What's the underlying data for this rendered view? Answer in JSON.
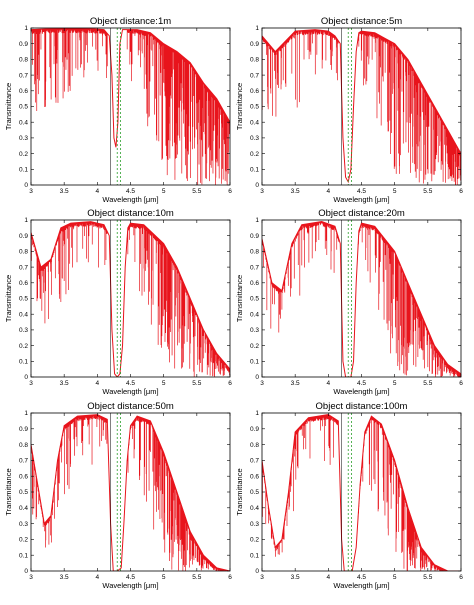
{
  "chart_data": [
    {
      "type": "line",
      "title": "Object distance:1m",
      "xlabel": "Wavelength [μm]",
      "ylabel": "Transmittance",
      "xlim": [
        3,
        6
      ],
      "ylim": [
        0,
        1
      ],
      "xticks": [
        "3",
        "3.5",
        "4",
        "4.5",
        "5",
        "5.5",
        "6"
      ],
      "yticks": [
        "0",
        "0.1",
        "0.2",
        "0.3",
        "0.4",
        "0.5",
        "0.6",
        "0.7",
        "0.8",
        "0.9",
        "1"
      ],
      "grid": false,
      "reference_lines_x": [
        4.2,
        4.3,
        4.35
      ],
      "series": [
        {
          "color": "#e8141c",
          "x": [
            3.0,
            3.3,
            3.6,
            3.9,
            4.1,
            4.18,
            4.22,
            4.25,
            4.28,
            4.31,
            4.34,
            4.38,
            4.42,
            4.6,
            4.8,
            5.0,
            5.2,
            5.4,
            5.6,
            5.8,
            6.0
          ],
          "y": [
            0.99,
            0.995,
            0.998,
            0.995,
            0.99,
            0.95,
            0.7,
            0.3,
            0.24,
            0.4,
            0.9,
            0.99,
            0.99,
            0.99,
            0.97,
            0.9,
            0.85,
            0.78,
            0.65,
            0.55,
            0.4
          ]
        }
      ]
    },
    {
      "type": "line",
      "title": "Object distance:5m",
      "xlabel": "Wavelength [μm]",
      "ylabel": "Transmittance",
      "xlim": [
        3,
        6
      ],
      "ylim": [
        0,
        1
      ],
      "xticks": [
        "3",
        "3.5",
        "4",
        "4.5",
        "5",
        "5.5",
        "6"
      ],
      "yticks": [
        "0",
        "0.1",
        "0.2",
        "0.3",
        "0.4",
        "0.5",
        "0.6",
        "0.7",
        "0.8",
        "0.9",
        "1"
      ],
      "grid": false,
      "reference_lines_x": [
        4.2,
        4.3,
        4.35
      ],
      "series": [
        {
          "color": "#e8141c",
          "x": [
            3.0,
            3.2,
            3.5,
            3.8,
            4.0,
            4.1,
            4.18,
            4.22,
            4.26,
            4.3,
            4.34,
            4.38,
            4.42,
            4.46,
            4.5,
            4.7,
            5.0,
            5.2,
            5.4,
            5.6,
            5.8,
            6.0
          ],
          "y": [
            0.95,
            0.85,
            0.98,
            0.99,
            0.98,
            0.95,
            0.9,
            0.3,
            0.05,
            0.02,
            0.1,
            0.5,
            0.85,
            0.97,
            0.98,
            0.97,
            0.9,
            0.8,
            0.65,
            0.5,
            0.35,
            0.2
          ]
        }
      ]
    },
    {
      "type": "line",
      "title": "Object distance:10m",
      "xlabel": "Wavelength [μm]",
      "ylabel": "Transmittance",
      "xlim": [
        3,
        6
      ],
      "ylim": [
        0,
        1
      ],
      "xticks": [
        "3",
        "3.5",
        "4",
        "4.5",
        "5",
        "5.5",
        "6"
      ],
      "yticks": [
        "0",
        "0.1",
        "0.2",
        "0.3",
        "0.4",
        "0.5",
        "0.6",
        "0.7",
        "0.8",
        "0.9",
        "1"
      ],
      "grid": false,
      "reference_lines_x": [
        4.2,
        4.3,
        4.35
      ],
      "series": [
        {
          "color": "#e8141c",
          "x": [
            3.0,
            3.15,
            3.3,
            3.45,
            3.6,
            3.9,
            4.1,
            4.18,
            4.22,
            4.26,
            4.3,
            4.34,
            4.38,
            4.42,
            4.46,
            4.5,
            4.7,
            5.0,
            5.2,
            5.4,
            5.6,
            5.8,
            6.0
          ],
          "y": [
            0.92,
            0.7,
            0.75,
            0.95,
            0.98,
            0.99,
            0.97,
            0.9,
            0.3,
            0.02,
            0.0,
            0.02,
            0.2,
            0.7,
            0.95,
            0.98,
            0.97,
            0.85,
            0.7,
            0.5,
            0.3,
            0.15,
            0.05
          ]
        }
      ]
    },
    {
      "type": "line",
      "title": "Object distance:20m",
      "xlabel": "Wavelength [μm]",
      "ylabel": "Transmittance",
      "xlim": [
        3,
        6
      ],
      "ylim": [
        0,
        1
      ],
      "xticks": [
        "3",
        "3.5",
        "4",
        "4.5",
        "5",
        "5.5",
        "6"
      ],
      "yticks": [
        "0",
        "0.1",
        "0.2",
        "0.3",
        "0.4",
        "0.5",
        "0.6",
        "0.7",
        "0.8",
        "0.9",
        "1"
      ],
      "grid": false,
      "reference_lines_x": [
        4.2,
        4.3,
        4.35
      ],
      "series": [
        {
          "color": "#e8141c",
          "x": [
            3.0,
            3.15,
            3.3,
            3.45,
            3.6,
            3.9,
            4.1,
            4.18,
            4.22,
            4.26,
            4.3,
            4.34,
            4.38,
            4.42,
            4.46,
            4.5,
            4.7,
            5.0,
            5.2,
            5.4,
            5.6,
            5.8,
            6.0
          ],
          "y": [
            0.88,
            0.6,
            0.55,
            0.85,
            0.97,
            0.99,
            0.96,
            0.85,
            0.1,
            0.0,
            0.0,
            0.0,
            0.1,
            0.6,
            0.93,
            0.98,
            0.96,
            0.8,
            0.6,
            0.4,
            0.2,
            0.08,
            0.02
          ]
        }
      ]
    },
    {
      "type": "line",
      "title": "Object distance:50m",
      "xlabel": "Wavelength [μm]",
      "ylabel": "Transmittance",
      "xlim": [
        3,
        6
      ],
      "ylim": [
        0,
        1
      ],
      "xticks": [
        "3",
        "3.5",
        "4",
        "4.5",
        "5",
        "5.5",
        "6"
      ],
      "yticks": [
        "0",
        "0.1",
        "0.2",
        "0.3",
        "0.4",
        "0.5",
        "0.6",
        "0.7",
        "0.8",
        "0.9",
        "1"
      ],
      "grid": false,
      "reference_lines_x": [
        4.2,
        4.3,
        4.35
      ],
      "series": [
        {
          "color": "#e8141c",
          "x": [
            3.0,
            3.1,
            3.2,
            3.3,
            3.4,
            3.5,
            3.7,
            4.0,
            4.15,
            4.2,
            4.24,
            4.3,
            4.36,
            4.4,
            4.45,
            4.5,
            4.6,
            4.8,
            5.0,
            5.2,
            5.4,
            5.6,
            5.8,
            6.0
          ],
          "y": [
            0.8,
            0.55,
            0.3,
            0.35,
            0.7,
            0.92,
            0.98,
            0.99,
            0.96,
            0.3,
            0.0,
            0.0,
            0.02,
            0.3,
            0.7,
            0.92,
            0.98,
            0.95,
            0.75,
            0.5,
            0.25,
            0.1,
            0.02,
            0.0
          ]
        }
      ]
    },
    {
      "type": "line",
      "title": "Object distance:100m",
      "xlabel": "Wavelength [μm]",
      "ylabel": "Transmittance",
      "xlim": [
        3,
        6
      ],
      "ylim": [
        0,
        1
      ],
      "xticks": [
        "3",
        "3.5",
        "4",
        "4.5",
        "5",
        "5.5",
        "6"
      ],
      "yticks": [
        "0",
        "0.1",
        "0.2",
        "0.3",
        "0.4",
        "0.5",
        "0.6",
        "0.7",
        "0.8",
        "0.9",
        "1"
      ],
      "grid": false,
      "reference_lines_x": [
        4.2,
        4.3,
        4.35
      ],
      "series": [
        {
          "color": "#e8141c",
          "x": [
            3.0,
            3.1,
            3.2,
            3.3,
            3.4,
            3.5,
            3.7,
            4.0,
            4.15,
            4.2,
            4.24,
            4.3,
            4.36,
            4.42,
            4.48,
            4.55,
            4.65,
            4.8,
            5.0,
            5.2,
            5.4,
            5.6,
            5.8,
            6.0
          ],
          "y": [
            0.7,
            0.4,
            0.15,
            0.2,
            0.5,
            0.88,
            0.97,
            0.99,
            0.95,
            0.2,
            0.0,
            0.0,
            0.0,
            0.15,
            0.55,
            0.88,
            0.98,
            0.93,
            0.7,
            0.4,
            0.15,
            0.04,
            0.0,
            0.0
          ]
        }
      ]
    }
  ]
}
